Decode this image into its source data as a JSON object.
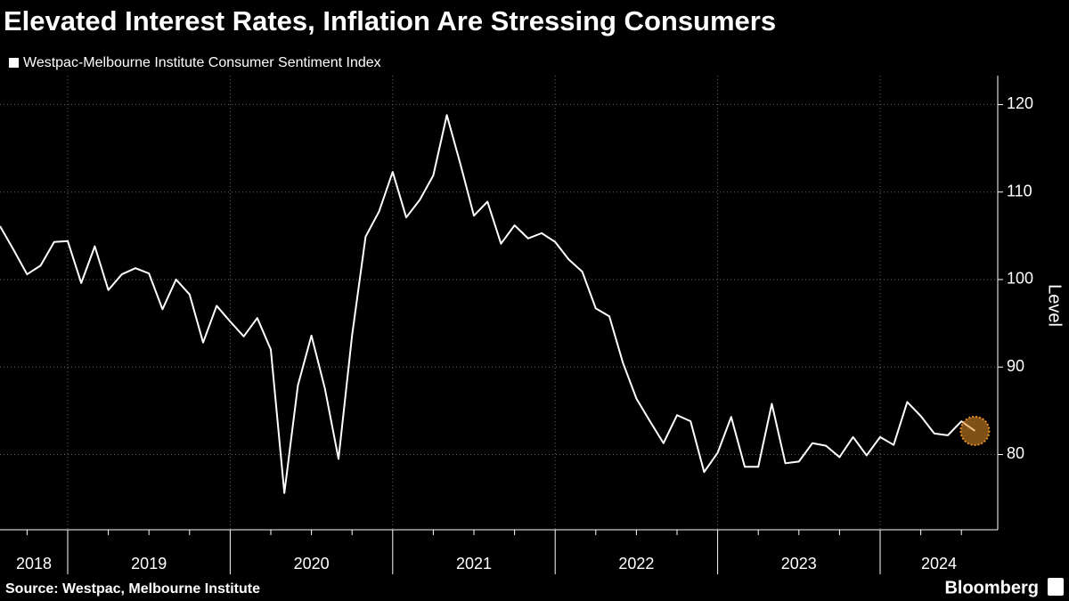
{
  "chart_data": {
    "type": "line",
    "title": "Elevated Interest Rates, Inflation Are Stressing Consumers",
    "source": "Source: Westpac, Melbourne Institute",
    "brand": "Bloomberg",
    "y_axis_label": "Level",
    "year_labels": [
      "2018",
      "2019",
      "2020",
      "2021",
      "2022",
      "2023",
      "2024"
    ],
    "x": [
      "2018-08",
      "2018-09",
      "2018-10",
      "2018-11",
      "2018-12",
      "2019-01",
      "2019-02",
      "2019-03",
      "2019-04",
      "2019-05",
      "2019-06",
      "2019-07",
      "2019-08",
      "2019-09",
      "2019-10",
      "2019-11",
      "2019-12",
      "2020-01",
      "2020-02",
      "2020-03",
      "2020-04",
      "2020-05",
      "2020-06",
      "2020-07",
      "2020-08",
      "2020-09",
      "2020-10",
      "2020-11",
      "2020-12",
      "2021-01",
      "2021-02",
      "2021-03",
      "2021-04",
      "2021-05",
      "2021-06",
      "2021-07",
      "2021-08",
      "2021-09",
      "2021-10",
      "2021-11",
      "2021-12",
      "2022-01",
      "2022-02",
      "2022-03",
      "2022-04",
      "2022-05",
      "2022-06",
      "2022-07",
      "2022-08",
      "2022-09",
      "2022-10",
      "2022-11",
      "2022-12",
      "2023-01",
      "2023-02",
      "2023-03",
      "2023-04",
      "2023-05",
      "2023-06",
      "2023-07",
      "2023-08",
      "2023-09",
      "2023-10",
      "2023-11",
      "2023-12",
      "2024-01",
      "2024-02",
      "2024-03",
      "2024-04",
      "2024-05",
      "2024-06",
      "2024-07",
      "2024-08"
    ],
    "series": [
      {
        "name": "Westpac-Melbourne Institute Consumer Sentiment Index",
        "color": "#ffffff",
        "values": [
          106.1,
          103.4,
          100.6,
          101.6,
          104.3,
          104.4,
          99.6,
          103.8,
          98.8,
          100.6,
          101.3,
          100.7,
          96.6,
          100,
          98.3,
          92.8,
          97,
          95.2,
          93.5,
          95.6,
          92,
          75.6,
          87.9,
          93.6,
          87.5,
          79.5,
          93.6,
          104.9,
          107.8,
          112.3,
          107.1,
          109.1,
          111.9,
          118.8,
          113.2,
          107.3,
          108.9,
          104.1,
          106.2,
          104.7,
          105.3,
          104.3,
          102.3,
          100.9,
          96.7,
          95.8,
          90.5,
          86.4,
          83.8,
          81.3,
          84.5,
          83.8,
          78,
          80.2,
          84.3,
          78.6,
          78.6,
          85.8,
          79,
          79.2,
          81.3,
          81,
          79.7,
          82,
          79.9,
          82,
          81.1,
          86,
          84.4,
          82.4,
          82.2,
          83.8,
          82.7
        ]
      }
    ],
    "highlight_color": "#e8922a",
    "ylim": [
      71.4,
      123.3
    ],
    "yticks": [
      80,
      90,
      100,
      110,
      120
    ],
    "grid": true
  }
}
